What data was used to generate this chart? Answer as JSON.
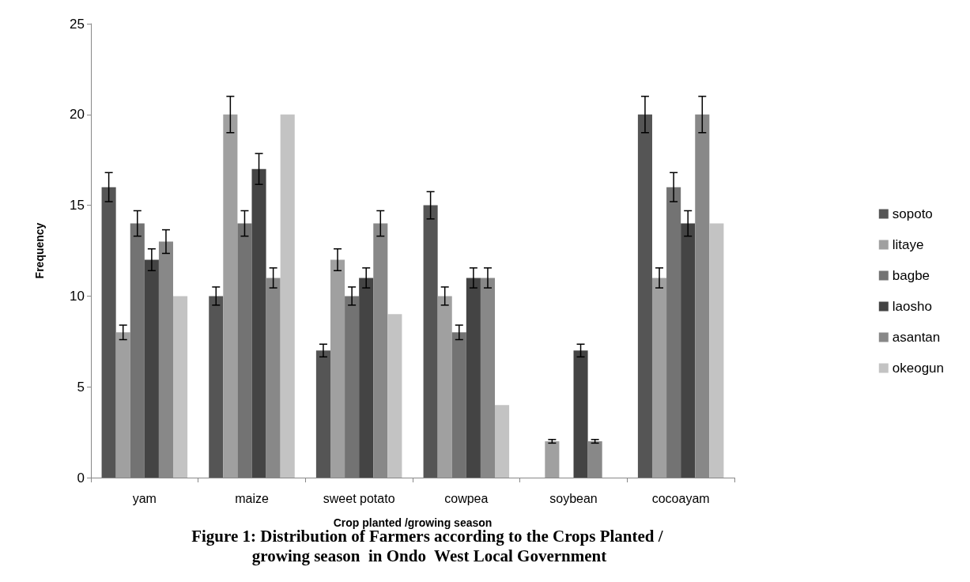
{
  "chart_data": {
    "type": "bar",
    "title": "Figure 1: Distribution of Farmers according to the Crops Planted / growing season  in Ondo  West Local Government",
    "xlabel": "Crop planted /growing season",
    "ylabel": "Frequency",
    "categories": [
      "yam",
      "maize",
      "sweet potato",
      "cowpea",
      "soybean",
      "cocoayam"
    ],
    "series": [
      {
        "name": "sopoto",
        "color": "#555555",
        "values": [
          16,
          10,
          7,
          15,
          0,
          20
        ],
        "errors": [
          0.8,
          0.5,
          0.35,
          0.75,
          null,
          1
        ]
      },
      {
        "name": "litaye",
        "color": "#a0a0a0",
        "values": [
          8,
          20,
          12,
          10,
          2,
          11
        ],
        "errors": [
          0.4,
          1,
          0.6,
          0.5,
          0.1,
          0.55
        ]
      },
      {
        "name": "bagbe",
        "color": "#737373",
        "values": [
          14,
          14,
          10,
          8,
          0,
          16
        ],
        "errors": [
          0.7,
          0.7,
          0.5,
          0.4,
          null,
          0.8
        ]
      },
      {
        "name": "laosho",
        "color": "#444444",
        "values": [
          12,
          17,
          11,
          11,
          7,
          14
        ],
        "errors": [
          0.6,
          0.85,
          0.55,
          0.55,
          0.35,
          0.7
        ]
      },
      {
        "name": "asantan",
        "color": "#888888",
        "values": [
          13,
          11,
          14,
          11,
          2,
          20
        ],
        "errors": [
          0.65,
          0.55,
          0.7,
          0.55,
          0.1,
          1
        ]
      },
      {
        "name": "okeogun",
        "color": "#c3c3c3",
        "values": [
          10,
          20,
          9,
          4,
          0,
          14
        ]
      }
    ],
    "ylim": [
      0,
      25
    ],
    "yticks": [
      0,
      5,
      10,
      15,
      20,
      25
    ],
    "grid": false,
    "legend": "right"
  }
}
